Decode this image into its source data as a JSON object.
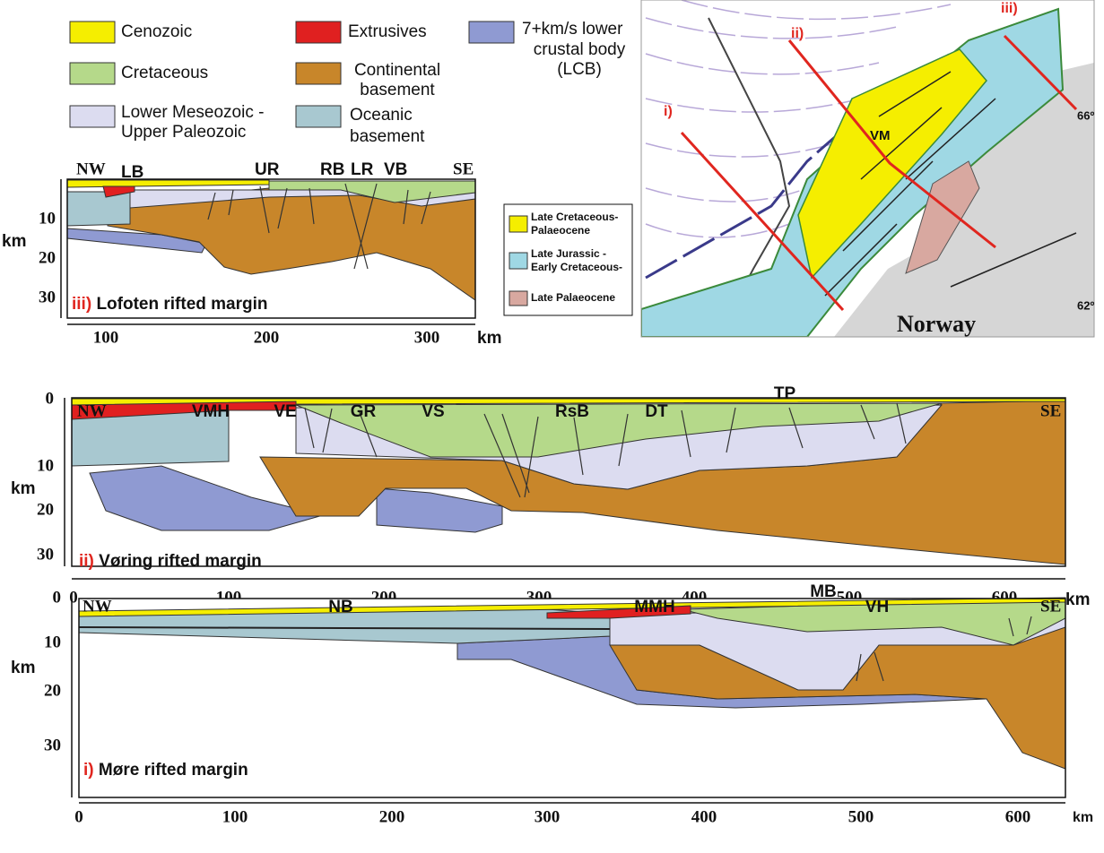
{
  "legend": {
    "items": [
      {
        "lines": [
          "Cenozoic"
        ]
      },
      {
        "lines": [
          "Extrusives"
        ]
      },
      {
        "lines": [
          "7+km/s lower",
          "crustal body",
          "(LCB)"
        ]
      },
      {
        "lines": [
          "Cretaceous"
        ]
      },
      {
        "lines": [
          "Continental",
          "basement"
        ]
      },
      {
        "lines": [
          "Lower Meseozoic -",
          "Upper Paleozoic"
        ]
      },
      {
        "lines": [
          "Oceanic",
          "basement"
        ]
      }
    ]
  },
  "map": {
    "legend": [
      {
        "lines": [
          "Late Cretaceous-",
          "Palaeocene"
        ]
      },
      {
        "lines": [
          "Late Jurassic -",
          "Early Cretaceous-"
        ]
      },
      {
        "lines": [
          "Late Palaeocene"
        ]
      }
    ],
    "profiles": [
      "i)",
      "ii)",
      "iii)"
    ],
    "vm": "VM",
    "country": "Norway",
    "lat_north": "66º",
    "lat_south": "62º"
  },
  "sections": [
    {
      "prefix": "iii)",
      "title": "Lofoten rifted margin",
      "left": "NW",
      "right": "SE",
      "features": [
        "LB",
        "UR",
        "RB",
        "LR",
        "VB"
      ],
      "y_unit": "km",
      "x_unit": "km",
      "y_ticks": [
        10,
        20,
        30
      ],
      "x_ticks": [
        100,
        200,
        300
      ]
    },
    {
      "prefix": "ii)",
      "title": "Vøring rifted margin",
      "left": "NW",
      "right": "SE",
      "features": [
        "VMH",
        "VE",
        "GR",
        "VS",
        "RsB",
        "DT",
        "TP"
      ],
      "y_unit": "km",
      "x_unit": "km",
      "y_ticks": [
        0,
        10,
        20,
        30
      ],
      "x_ticks": [
        0,
        100,
        200,
        300,
        400,
        500,
        600
      ]
    },
    {
      "prefix": "i)",
      "title": "Møre rifted margin",
      "left": "NW",
      "right": "SE",
      "features": [
        "NB",
        "MMH",
        "MB",
        "VH"
      ],
      "y_unit": "km",
      "x_unit": "km",
      "y_ticks": [
        0,
        10,
        20,
        30
      ],
      "x_ticks": [
        0,
        100,
        200,
        300,
        400,
        500,
        600
      ]
    }
  ]
}
